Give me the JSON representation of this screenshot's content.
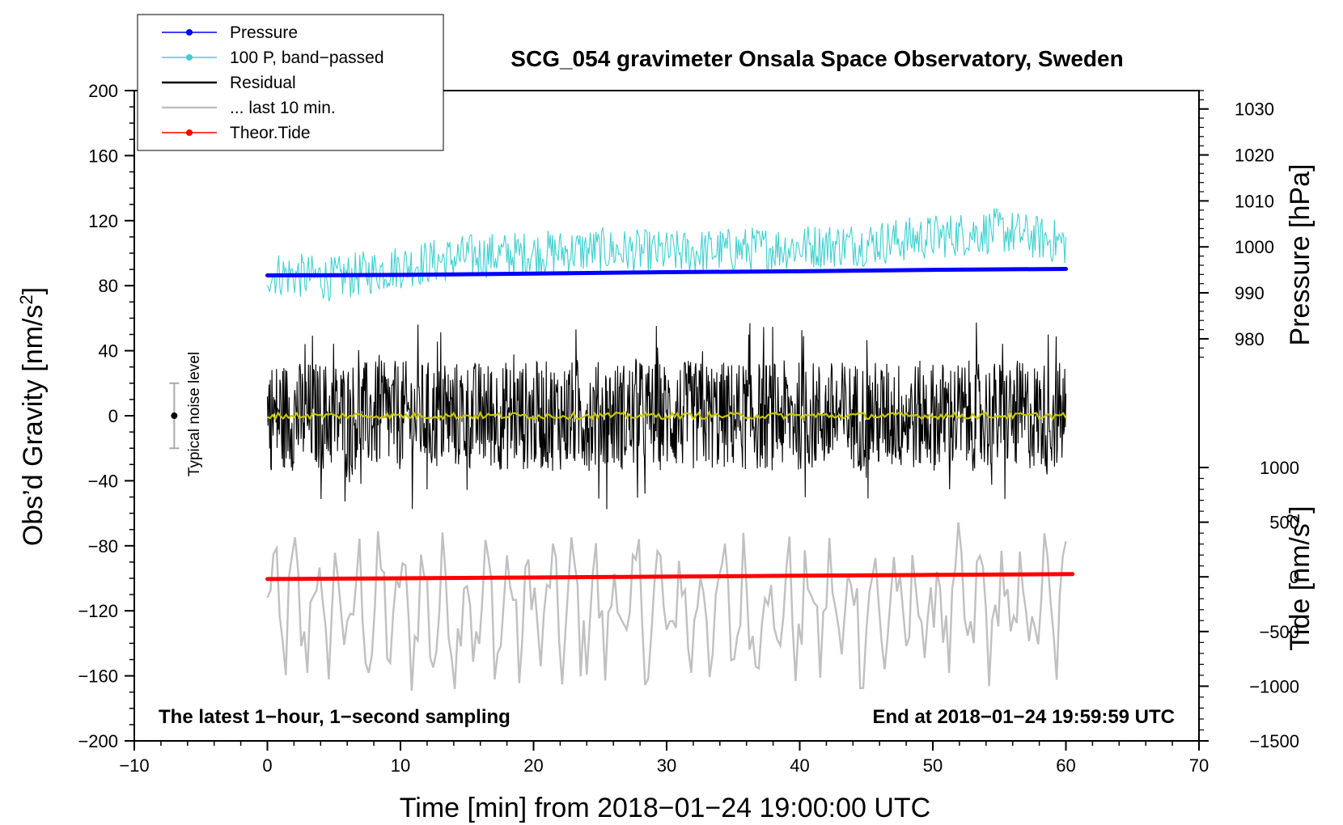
{
  "chart_data": {
    "type": "line",
    "title": "SCG_054 gravimeter Onsala Space Observatory, Sweden",
    "xlabel": "Time [min] from 2018−01−24 19:00:00 UTC",
    "ylabel_left": "Obs’d Gravity [nm/s",
    "ylabel_left_sup": "2",
    "ylabel_left_close": "]",
    "ylabel_right_top": "Pressure [hPa]",
    "ylabel_right_bottom": "Tide [nm/s",
    "ylabel_right_bottom_sup": "2",
    "ylabel_right_bottom_close": "]",
    "xlim": [
      -10,
      70
    ],
    "ylim": [
      -200,
      200
    ],
    "pressure_axis_range": [
      974,
      1034
    ],
    "tide_axis_range": [
      -1500,
      1000
    ],
    "x_ticks": [
      "−10",
      "0",
      "10",
      "20",
      "30",
      "40",
      "50",
      "60",
      "70"
    ],
    "y_ticks": [
      "200",
      "160",
      "120",
      "80",
      "40",
      "0",
      "−40",
      "−80",
      "−120",
      "−160",
      "−200"
    ],
    "pressure_ticks": [
      "1030",
      "1020",
      "1010",
      "1000",
      "990",
      "980"
    ],
    "tide_ticks": [
      "1000",
      "500",
      "0",
      "−500",
      "−1000",
      "−1500"
    ],
    "legend": [
      {
        "label": "Pressure",
        "color": "#0000ff",
        "marker": true
      },
      {
        "label": "100 P, band−passed",
        "color": "#40d0d0",
        "marker": true
      },
      {
        "label": "Residual",
        "color": "#000000",
        "marker": false
      },
      {
        "label": "... last 10 min.",
        "color": "#c0c0c0",
        "marker": false
      },
      {
        "label": "Theor.Tide",
        "color": "#ff0000",
        "marker": true
      }
    ],
    "series": [
      {
        "name": "Pressure",
        "axis": "pressure",
        "color": "#0000ff",
        "x": [
          0,
          10,
          20,
          30,
          40,
          50,
          60
        ],
        "values": [
          993.8,
          993.9,
          994.2,
          994.5,
          994.7,
          995.0,
          995.2
        ]
      },
      {
        "name": "100 P, band-passed",
        "axis": "gravity",
        "color": "#40d0d0",
        "x": [
          0,
          5,
          10,
          15,
          20,
          25,
          30,
          35,
          40,
          45,
          50,
          55,
          60
        ],
        "values": [
          88,
          84,
          92,
          98,
          100,
          102,
          100,
          102,
          104,
          106,
          110,
          114,
          106
        ],
        "amplitude": 14
      },
      {
        "name": "Residual",
        "axis": "gravity",
        "color": "#000000",
        "x": [
          0,
          60
        ],
        "values": [
          0,
          0
        ],
        "amplitude": 34
      },
      {
        "name": "Residual smoothed",
        "axis": "gravity",
        "color": "#c8c800",
        "x": [
          0,
          60
        ],
        "values": [
          0,
          0
        ],
        "amplitude": 2
      },
      {
        "name": "... last 10 min.",
        "axis": "gravity",
        "color": "#c0c0c0",
        "x": [
          0,
          60
        ],
        "values": [
          -120,
          -120
        ],
        "amplitude": 48
      },
      {
        "name": "Theor.Tide",
        "axis": "tide",
        "color": "#ff0000",
        "x": [
          0,
          10,
          20,
          30,
          40,
          50,
          60.5
        ],
        "values": [
          -20,
          -13,
          -6,
          2,
          10,
          18,
          25
        ]
      }
    ],
    "noise_bar": {
      "label": "Typical noise level",
      "x": -7,
      "y": 0,
      "low": -20,
      "high": 20
    },
    "annotation_left": "The latest 1−hour, 1−second sampling",
    "annotation_right": "End at 2018−01−24 19:59:59 UTC"
  }
}
